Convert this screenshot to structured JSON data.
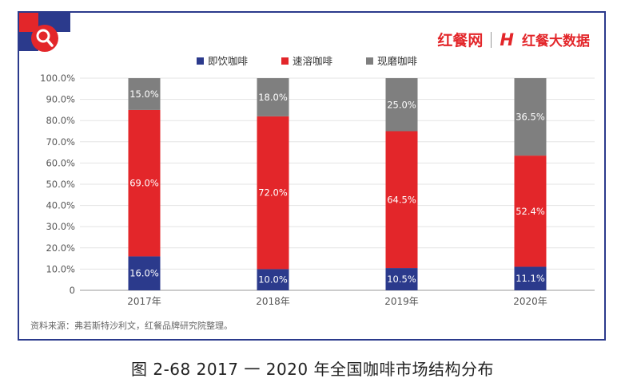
{
  "brand": {
    "logo1": "红餐网",
    "logo2": "红餐大数据"
  },
  "chart_data": {
    "type": "bar",
    "stacked": true,
    "categories": [
      "2017年",
      "2018年",
      "2019年",
      "2020年"
    ],
    "series": [
      {
        "name": "即饮咖啡",
        "color": "#2b3a8c",
        "values": [
          16.0,
          10.0,
          10.5,
          11.1
        ],
        "labels": [
          "16.0%",
          "10.0%",
          "10.5%",
          "11.1%"
        ]
      },
      {
        "name": "速溶咖啡",
        "color": "#e3262a",
        "values": [
          69.0,
          72.0,
          64.5,
          52.4
        ],
        "labels": [
          "69.0%",
          "72.0%",
          "64.5%",
          "52.4%"
        ]
      },
      {
        "name": "现磨咖啡",
        "color": "#7f7f7f",
        "values": [
          15.0,
          18.0,
          25.0,
          36.5
        ],
        "labels": [
          "15.0%",
          "18.0%",
          "25.0%",
          "36.5%"
        ]
      }
    ],
    "yticks": [
      "0",
      "10.0%",
      "20.0%",
      "30.0%",
      "40.0%",
      "50.0%",
      "60.0%",
      "70.0%",
      "80.0%",
      "90.0%",
      "100.0%"
    ],
    "ylim": [
      0,
      100
    ],
    "legend_position": "top",
    "grid": true
  },
  "source": "资料来源：弗若斯特沙利文，红餐品牌研究院整理。",
  "caption": "图 2-68     2017 一 2020 年全国咖啡市场结构分布"
}
